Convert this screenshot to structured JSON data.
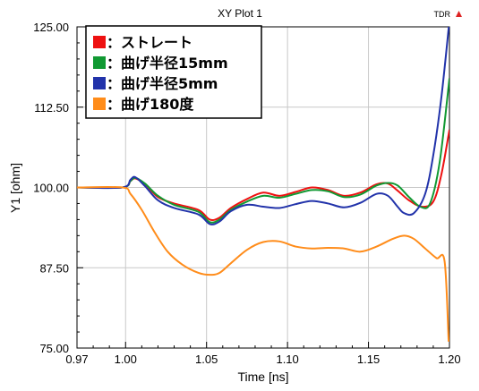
{
  "chart_data": {
    "type": "line",
    "title": "XY Plot 1",
    "corner_label": "TDR",
    "xlabel": "Time [ns]",
    "ylabel": "Y1 [ohm]",
    "xlim": [
      0.97,
      1.2
    ],
    "ylim": [
      75.0,
      125.0
    ],
    "x_ticks": [
      {
        "value": 0.97,
        "label": "0.97"
      },
      {
        "value": 1.0,
        "label": "1.00"
      },
      {
        "value": 1.05,
        "label": "1.05"
      },
      {
        "value": 1.1,
        "label": "1.10"
      },
      {
        "value": 1.15,
        "label": "1.15"
      },
      {
        "value": 1.2,
        "label": "1.20"
      }
    ],
    "y_ticks": [
      {
        "value": 75.0,
        "label": "75.00"
      },
      {
        "value": 87.5,
        "label": "87.50"
      },
      {
        "value": 100.0,
        "label": "100.00"
      },
      {
        "value": 112.5,
        "label": "112.50"
      },
      {
        "value": 125.0,
        "label": "125.00"
      }
    ],
    "grid": true,
    "legend_position": "top-left",
    "series": [
      {
        "name": "：ストレート",
        "color": "#ee1111",
        "x": [
          0.97,
          0.998,
          1.003,
          1.006,
          1.012,
          1.02,
          1.03,
          1.045,
          1.052,
          1.058,
          1.065,
          1.075,
          1.085,
          1.095,
          1.105,
          1.115,
          1.125,
          1.135,
          1.145,
          1.155,
          1.162,
          1.168,
          1.175,
          1.183,
          1.19,
          1.195,
          1.2
        ],
        "y": [
          100.0,
          100.0,
          101.0,
          101.4,
          100.5,
          98.5,
          97.5,
          96.5,
          95.0,
          95.3,
          96.8,
          98.2,
          99.2,
          98.7,
          99.3,
          100.0,
          99.6,
          98.7,
          99.2,
          100.5,
          100.6,
          99.5,
          98.0,
          97.0,
          97.8,
          102.0,
          109.0
        ]
      },
      {
        "name": "：曲げ半径15mm",
        "color": "#119933",
        "x": [
          0.97,
          0.998,
          1.003,
          1.006,
          1.012,
          1.02,
          1.03,
          1.045,
          1.052,
          1.058,
          1.065,
          1.075,
          1.085,
          1.095,
          1.105,
          1.115,
          1.125,
          1.135,
          1.145,
          1.155,
          1.162,
          1.168,
          1.175,
          1.182,
          1.188,
          1.194,
          1.2
        ],
        "y": [
          100.0,
          100.0,
          101.0,
          101.5,
          100.6,
          98.7,
          97.3,
          96.2,
          94.6,
          95.0,
          96.5,
          97.8,
          98.7,
          98.4,
          99.0,
          99.6,
          99.4,
          98.5,
          98.9,
          100.3,
          100.7,
          100.3,
          98.5,
          97.0,
          97.5,
          104.0,
          117.0
        ]
      },
      {
        "name": "：曲げ半径5mm",
        "color": "#2233aa",
        "x": [
          0.97,
          0.998,
          1.003,
          1.006,
          1.012,
          1.02,
          1.03,
          1.045,
          1.052,
          1.058,
          1.065,
          1.075,
          1.085,
          1.095,
          1.105,
          1.115,
          1.125,
          1.135,
          1.145,
          1.155,
          1.162,
          1.168,
          1.172,
          1.178,
          1.185,
          1.19,
          1.195,
          1.2
        ],
        "y": [
          100.0,
          100.0,
          101.2,
          101.6,
          100.2,
          98.0,
          96.8,
          95.8,
          94.3,
          94.7,
          96.3,
          97.3,
          97.0,
          96.8,
          97.4,
          97.9,
          97.5,
          96.9,
          97.6,
          99.0,
          98.7,
          97.0,
          96.0,
          96.0,
          99.0,
          105.0,
          114.0,
          126.0
        ]
      },
      {
        "name": "：曲げ180度",
        "color": "#ff8c1a",
        "x": [
          0.97,
          0.998,
          1.003,
          1.01,
          1.018,
          1.026,
          1.035,
          1.045,
          1.052,
          1.058,
          1.065,
          1.075,
          1.085,
          1.095,
          1.105,
          1.115,
          1.125,
          1.135,
          1.145,
          1.155,
          1.165,
          1.172,
          1.178,
          1.185,
          1.192,
          1.197,
          1.1995
        ],
        "y": [
          100.0,
          100.0,
          99.0,
          96.5,
          93.0,
          90.0,
          88.0,
          86.7,
          86.4,
          86.7,
          88.2,
          90.3,
          91.5,
          91.6,
          90.8,
          90.5,
          90.6,
          90.5,
          90.0,
          90.8,
          92.0,
          92.5,
          92.0,
          90.5,
          89.0,
          88.5,
          76.0
        ]
      }
    ]
  }
}
